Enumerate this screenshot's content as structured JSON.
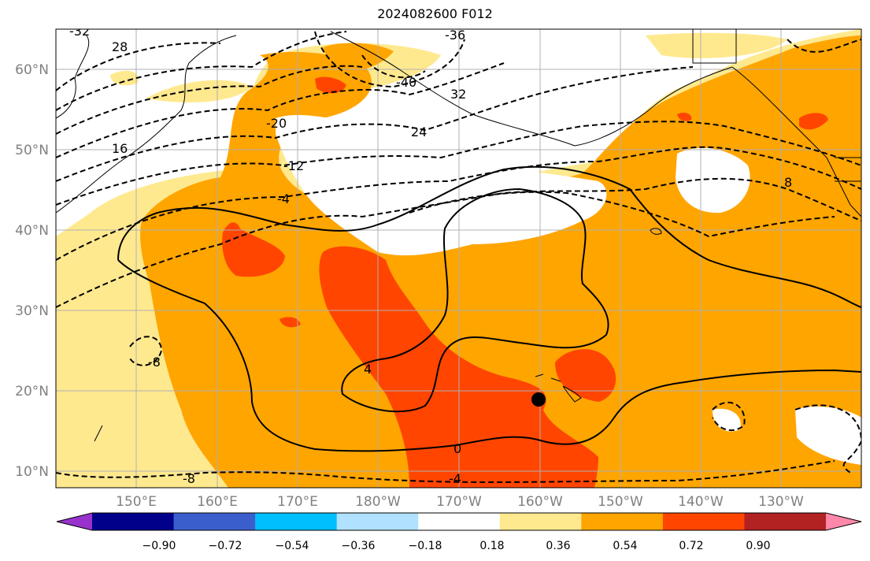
{
  "map": {
    "title": "2024082600 F012",
    "lat_labels": [
      "60°N",
      "50°N",
      "40°N",
      "30°N",
      "20°N",
      "10°N"
    ],
    "lon_labels": [
      "150°E",
      "160°E",
      "170°E",
      "180°W",
      "170°W",
      "160°W",
      "150°W",
      "140°W",
      "130°W"
    ],
    "contour_labels": [
      "-32",
      "28",
      "-36",
      "-40",
      "32",
      "-20",
      "24",
      "16",
      "-12",
      "-4",
      "8",
      "4",
      "-8",
      "0",
      "-4",
      "-8"
    ],
    "marker": "storm-center-marker",
    "colors": {
      "land_outline": "#000000",
      "grid": "#b0b0b0",
      "light_yellow": "#ffe98f",
      "orange": "#ffa500",
      "red_orange": "#ff4500"
    }
  },
  "colorbar": {
    "ticks": [
      "−0.90",
      "−0.72",
      "−0.54",
      "−0.36",
      "−0.18",
      "0.18",
      "0.36",
      "0.54",
      "0.72",
      "0.90"
    ],
    "colors": [
      "#9932cc",
      "#00008b",
      "#3a5fcd",
      "#00bfff",
      "#b0e2ff",
      "#ffffff",
      "#ffe98f",
      "#ffa500",
      "#ff4500",
      "#b22222",
      "#ff88aa"
    ]
  }
}
